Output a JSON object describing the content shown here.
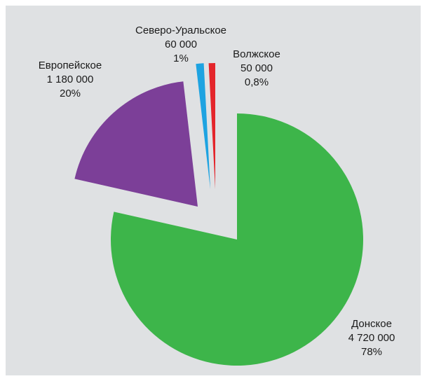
{
  "chart_data": {
    "type": "pie",
    "categories": [
      "Донское",
      "Европейское",
      "Северо-Уральское",
      "Волжское"
    ],
    "values": [
      4720000,
      1180000,
      60000,
      50000
    ],
    "value_labels": [
      "4 720 000",
      "1 180 000",
      "60 000",
      "50 000"
    ],
    "percents": [
      78,
      20,
      1,
      0.8
    ],
    "percent_labels": [
      "78%",
      "20%",
      "1%",
      "0,8%"
    ],
    "colors": [
      "#3db54a",
      "#7c3f98",
      "#1ea3e1",
      "#e4252b"
    ],
    "exploded": [
      false,
      true,
      true,
      true
    ]
  }
}
